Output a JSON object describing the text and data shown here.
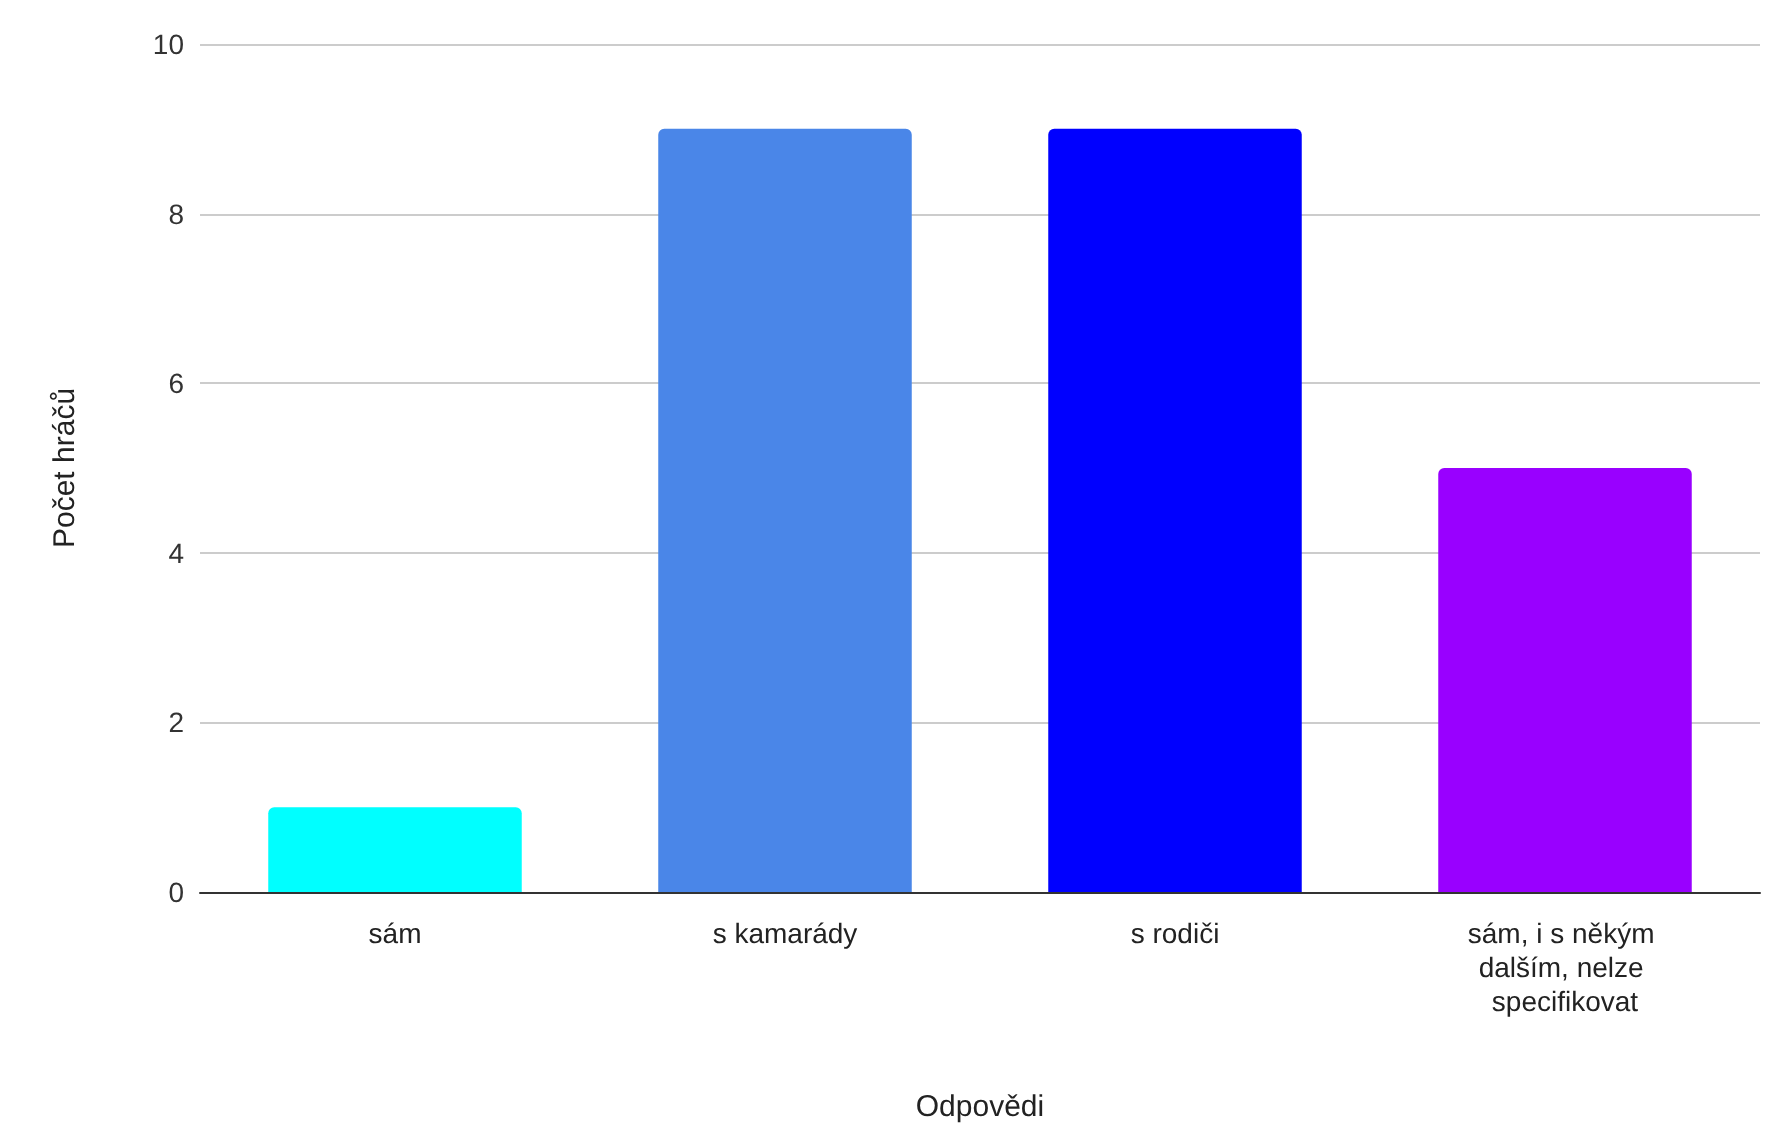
{
  "chart_data": {
    "type": "bar",
    "xlabel": "Odpovědi",
    "ylabel": "Počet hráčů",
    "categories": [
      "sám",
      "s kamarády",
      "s rodiči",
      "sám, i s někým dalším, nelze specifikovat"
    ],
    "values": [
      1,
      9,
      9,
      5
    ],
    "colors": [
      "#00ffff",
      "#4a86e8",
      "#0000ff",
      "#9900ff"
    ],
    "ylim": [
      0,
      10
    ],
    "yticks": [
      0,
      2,
      4,
      6,
      8,
      10
    ],
    "grid": "y"
  }
}
